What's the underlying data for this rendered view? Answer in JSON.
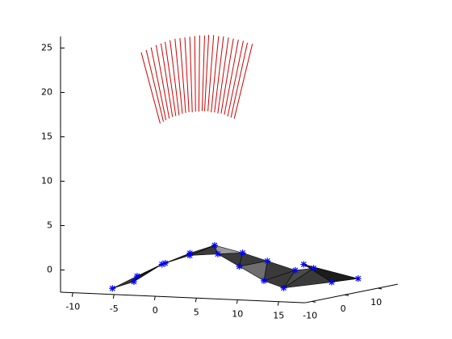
{
  "chart_data": {
    "type": "scatter3d",
    "xlim": [
      -11.5,
      18.2
    ],
    "ylim": [
      -12,
      16
    ],
    "zlim": [
      -2.5,
      26.3
    ],
    "xticks": [
      -10,
      -5,
      0,
      5,
      10,
      15
    ],
    "yticks": [
      -10,
      0,
      10
    ],
    "zticks": [
      0,
      5,
      10,
      15,
      20,
      25
    ],
    "segments": {
      "color": "#cc0000",
      "x_start": [
        0.6,
        1.0,
        1.3,
        1.7,
        2.1,
        2.5,
        2.9,
        3.3,
        3.7,
        4.1,
        4.5,
        4.9,
        5.3,
        5.7,
        6.0,
        6.4,
        6.8,
        7.2,
        7.6,
        8.0,
        8.4,
        8.8,
        9.2,
        9.6
      ],
      "z_start": [
        17.0,
        17.2,
        17.4,
        17.6,
        17.8,
        17.9,
        18.0,
        18.2,
        18.3,
        18.4,
        18.4,
        18.5,
        18.5,
        18.6,
        18.6,
        18.6,
        18.5,
        18.5,
        18.4,
        18.4,
        18.3,
        18.1,
        18.0,
        17.9
      ],
      "x_end": [
        -1.7,
        -1.1,
        -0.5,
        0.1,
        0.7,
        1.2,
        1.8,
        2.4,
        3.0,
        3.6,
        4.2,
        4.8,
        5.4,
        6.0,
        6.5,
        7.1,
        7.7,
        8.3,
        8.9,
        9.5,
        10.1,
        10.7,
        11.2,
        11.8
      ],
      "z_end": [
        24.9,
        25.2,
        25.5,
        25.8,
        26.0,
        26.2,
        26.4,
        26.6,
        26.7,
        26.8,
        26.9,
        27.0,
        27.1,
        27.1,
        27.2,
        27.2,
        27.1,
        27.1,
        27.0,
        26.9,
        26.8,
        26.7,
        26.5,
        26.4
      ]
    },
    "points": {
      "color": "#0000ff",
      "surface_color": "#3a3a3a",
      "x": [
        -6,
        -5,
        -3,
        -2,
        0,
        1,
        3,
        4,
        6,
        7,
        9,
        10,
        12,
        13,
        14,
        12,
        15,
        10,
        15
      ],
      "y": [
        -10,
        -6,
        -10,
        -5,
        -9,
        -4,
        -9,
        -4,
        -8,
        -3,
        -9,
        -3,
        -9,
        -2,
        -8,
        6,
        4,
        8,
        12
      ],
      "z": [
        -2,
        -1.5,
        -0.5,
        0.5,
        1.0,
        1.8,
        2.0,
        2.8,
        2.2,
        2.0,
        1.0,
        1.2,
        -0.5,
        0.2,
        -1.3,
        -0.2,
        -1.5,
        0,
        -1.7
      ]
    }
  }
}
